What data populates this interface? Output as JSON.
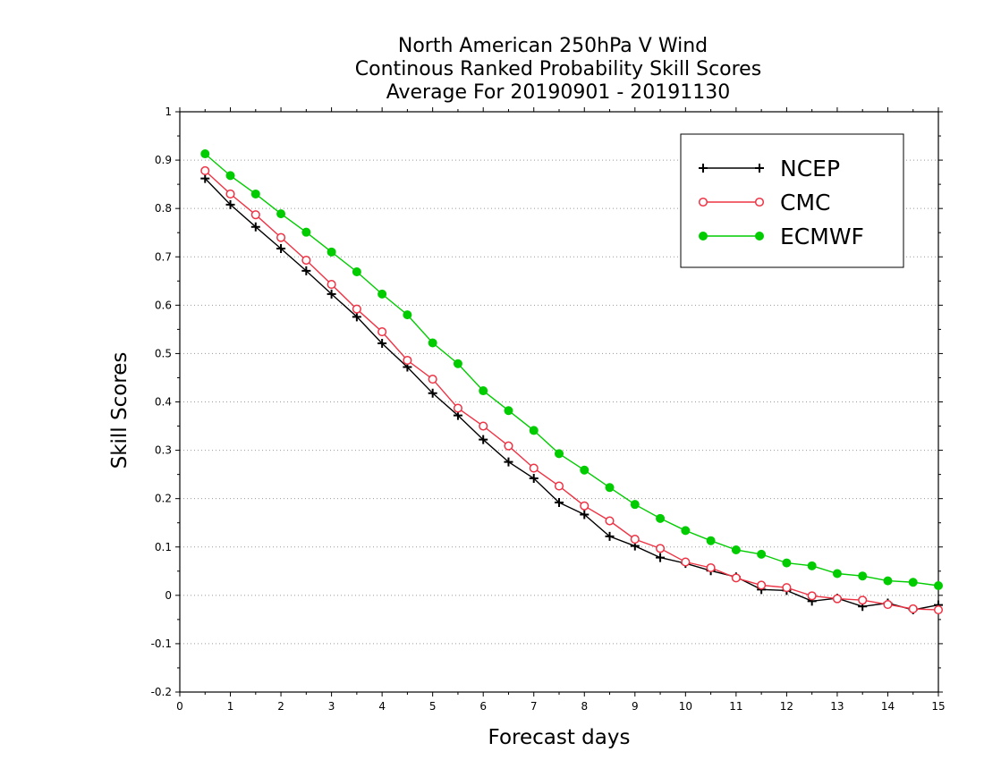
{
  "chart_data": {
    "type": "line",
    "title_lines": [
      "North American 250hPa V Wind",
      "Continous Ranked Probability Skill Scores",
      "Average For 20190901 - 20191130"
    ],
    "xlabel": "Forecast days",
    "ylabel": "Skill Scores",
    "xlim": [
      0,
      15
    ],
    "ylim": [
      -0.2,
      1
    ],
    "x_ticks": [
      "0",
      "1",
      "2",
      "3",
      "4",
      "5",
      "6",
      "7",
      "8",
      "9",
      "10",
      "11",
      "12",
      "13",
      "14",
      "15"
    ],
    "y_ticks": [
      "-0.2",
      "-0.1",
      "0",
      "0.1",
      "0.2",
      "0.3",
      "0.4",
      "0.5",
      "0.6",
      "0.7",
      "0.8",
      "0.9",
      "1"
    ],
    "grid": "horizontal dotted",
    "legend_position": "top-right",
    "x": [
      0.5,
      1,
      1.5,
      2,
      2.5,
      3,
      3.5,
      4,
      4.5,
      5,
      5.5,
      6,
      6.5,
      7,
      7.5,
      8,
      8.5,
      9,
      9.5,
      10,
      10.5,
      11,
      11.5,
      12,
      12.5,
      13,
      13.5,
      14,
      14.5,
      15
    ],
    "series": [
      {
        "name": "NCEP",
        "color": "#000000",
        "marker": "plus",
        "values": [
          0.862,
          0.808,
          0.762,
          0.717,
          0.671,
          0.623,
          0.576,
          0.521,
          0.472,
          0.418,
          0.372,
          0.322,
          0.276,
          0.242,
          0.192,
          0.167,
          0.122,
          0.102,
          0.078,
          0.066,
          0.051,
          0.038,
          0.012,
          0.01,
          -0.012,
          -0.006,
          -0.023,
          -0.016,
          -0.03,
          -0.02
        ]
      },
      {
        "name": "CMC",
        "color": "#ee3344",
        "marker": "open-circle",
        "values": [
          0.878,
          0.83,
          0.787,
          0.74,
          0.693,
          0.643,
          0.592,
          0.545,
          0.486,
          0.447,
          0.387,
          0.35,
          0.309,
          0.263,
          0.226,
          0.185,
          0.154,
          0.116,
          0.097,
          0.069,
          0.057,
          0.036,
          0.021,
          0.016,
          -0.001,
          -0.007,
          -0.01,
          -0.019,
          -0.028,
          -0.03
        ]
      },
      {
        "name": "ECMWF",
        "color": "#00cc00",
        "marker": "filled-circle",
        "values": [
          0.913,
          0.868,
          0.83,
          0.789,
          0.751,
          0.71,
          0.669,
          0.623,
          0.58,
          0.522,
          0.479,
          0.423,
          0.382,
          0.341,
          0.293,
          0.259,
          0.223,
          0.188,
          0.159,
          0.134,
          0.113,
          0.094,
          0.085,
          0.067,
          0.061,
          0.045,
          0.04,
          0.03,
          0.027,
          0.02
        ]
      }
    ]
  }
}
